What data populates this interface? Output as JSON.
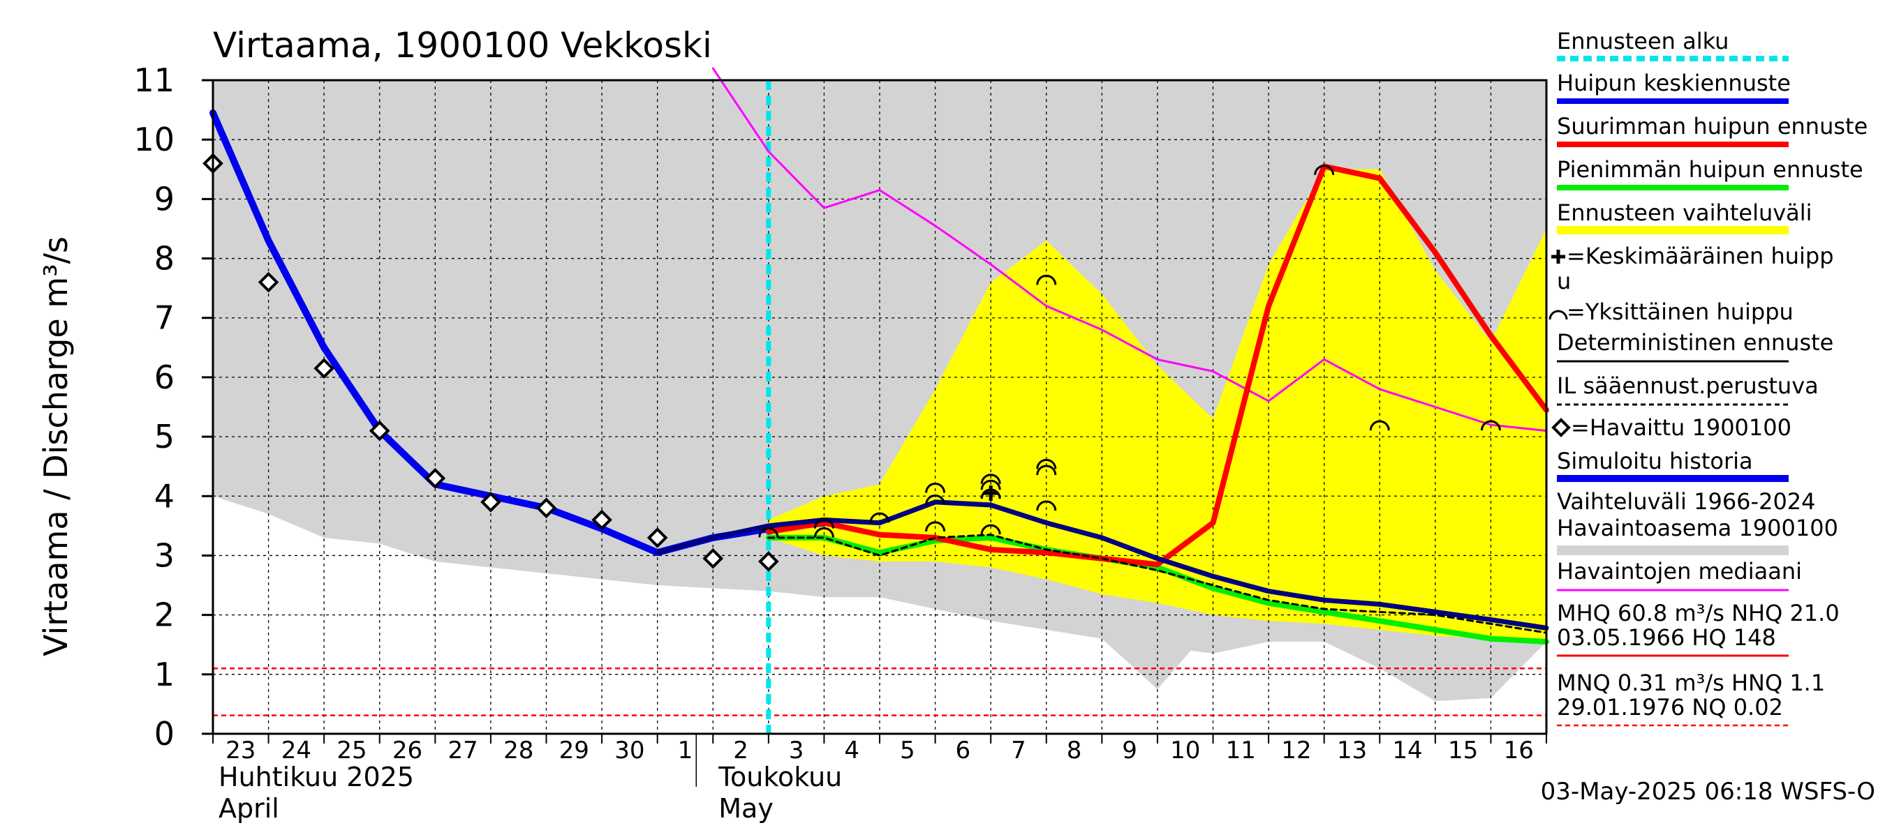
{
  "chart_data": {
    "type": "line",
    "title": "Virtaama, 1900100 Vekkoski",
    "ylabel": "Virtaama / Discharge    m³/s",
    "ylim": [
      0,
      11
    ],
    "yticks": [
      0,
      1,
      2,
      3,
      4,
      5,
      6,
      7,
      8,
      9,
      10,
      11
    ],
    "x_days": [
      "23",
      "24",
      "25",
      "26",
      "27",
      "28",
      "29",
      "30",
      "1",
      "2",
      "3",
      "4",
      "5",
      "6",
      "7",
      "8",
      "9",
      "10",
      "11",
      "12",
      "13",
      "14",
      "15",
      "16"
    ],
    "x_start_index": 0,
    "x_end_index": 24,
    "month_labels": [
      {
        "fi": "Huhtikuu  2025",
        "en": "April",
        "at": 0
      },
      {
        "fi": "Toukokuu",
        "en": "May",
        "at": 9
      }
    ],
    "forecast_start": 10,
    "colors": {
      "grid": "#000000",
      "history_band": "#d3d3d3",
      "forecast_band": "#ffff00",
      "mean_peak": "#0000ee",
      "max_peak": "#ff0000",
      "min_peak": "#00ee00",
      "median": "#ff00ff",
      "simulated": "#0000ee",
      "navy": "#000080",
      "forecast_start_line": "#00e5ee",
      "ref_lines": "#ff0000"
    },
    "history_band": {
      "x": [
        0,
        1,
        2,
        3,
        4,
        5,
        6,
        7,
        8,
        9,
        10,
        11,
        12,
        13,
        14,
        15,
        16,
        17,
        17.6,
        18,
        19,
        20,
        21,
        22,
        23,
        24
      ],
      "upper": [
        11,
        11,
        11,
        11,
        11,
        11,
        11,
        11,
        11,
        11,
        11,
        11,
        11,
        11,
        11,
        11,
        11,
        11,
        11,
        11,
        11,
        11,
        11,
        11,
        11,
        11
      ],
      "lower": [
        4.0,
        3.7,
        3.3,
        3.2,
        2.9,
        2.8,
        2.7,
        2.6,
        2.5,
        2.45,
        2.4,
        2.3,
        2.3,
        2.1,
        1.9,
        1.75,
        1.6,
        0.75,
        1.4,
        1.35,
        1.55,
        1.55,
        1.1,
        0.55,
        0.6,
        1.55
      ]
    },
    "forecast_band": {
      "x": [
        10,
        11,
        12,
        13,
        14,
        15,
        16,
        17,
        18,
        19,
        20,
        21,
        22,
        23,
        24
      ],
      "upper": [
        3.6,
        4.0,
        4.2,
        5.8,
        7.6,
        8.3,
        7.4,
        6.2,
        5.3,
        7.9,
        9.5,
        9.5,
        7.8,
        6.6,
        8.5
      ],
      "lower": [
        3.3,
        3.0,
        2.9,
        2.9,
        2.8,
        2.6,
        2.35,
        2.2,
        2.0,
        1.9,
        1.85,
        1.75,
        1.65,
        1.6,
        1.5
      ]
    },
    "series": [
      {
        "name": "Simuloitu historia",
        "color": "#0000ee",
        "width": 10,
        "x": [
          0,
          1,
          2,
          3,
          4,
          5,
          6,
          7,
          8,
          9,
          10,
          11
        ],
        "y": [
          10.45,
          8.3,
          6.5,
          5.1,
          4.2,
          4.0,
          3.8,
          3.45,
          3.05,
          3.3,
          3.45,
          3.55
        ]
      },
      {
        "name": "Havaintojen mediaani",
        "color": "#ff00ff",
        "width": 3,
        "x": [
          9,
          10,
          11,
          12,
          13,
          14,
          15,
          16,
          17,
          18,
          19,
          20,
          21,
          22,
          23,
          24
        ],
        "y": [
          11.2,
          9.8,
          8.85,
          9.15,
          8.55,
          7.9,
          7.2,
          6.8,
          6.3,
          6.1,
          5.6,
          6.3,
          5.8,
          5.5,
          5.2,
          5.1
        ]
      },
      {
        "name": "Pienimmän huipun ennuste",
        "color": "#00ee00",
        "width": 8,
        "x": [
          10,
          11,
          12,
          13,
          14,
          15,
          16,
          17,
          18,
          19,
          20,
          21,
          22,
          23,
          24
        ],
        "y": [
          3.3,
          3.3,
          3.05,
          3.25,
          3.3,
          3.1,
          2.95,
          2.8,
          2.45,
          2.2,
          2.05,
          1.9,
          1.75,
          1.6,
          1.55
        ]
      },
      {
        "name": "Suurimman huipun ennuste",
        "color": "#ff0000",
        "width": 8,
        "x": [
          10,
          11,
          12,
          13,
          14,
          15,
          16,
          17,
          18,
          19,
          20,
          21,
          22,
          23,
          24
        ],
        "y": [
          3.4,
          3.55,
          3.35,
          3.3,
          3.1,
          3.05,
          2.95,
          2.85,
          3.55,
          7.2,
          9.55,
          9.35,
          8.1,
          6.7,
          5.45
        ]
      },
      {
        "name": "IL sääennust.perustuva",
        "color": "#000000",
        "width": 3,
        "dash": "8,6",
        "x": [
          10,
          11,
          12,
          13,
          14,
          15,
          16,
          17,
          18,
          19,
          20,
          21,
          22,
          23,
          24
        ],
        "y": [
          3.3,
          3.3,
          3.0,
          3.3,
          3.35,
          3.1,
          2.95,
          2.75,
          2.5,
          2.25,
          2.1,
          2.05,
          2.0,
          1.85,
          1.7
        ]
      },
      {
        "name": "Huipun keskiennuste",
        "color": "#000080",
        "width": 7,
        "x": [
          8,
          9,
          10,
          11,
          12,
          13,
          14,
          15,
          16,
          17,
          18,
          19,
          20,
          21,
          22,
          23,
          24
        ],
        "y": [
          3.05,
          3.3,
          3.5,
          3.6,
          3.55,
          3.9,
          3.85,
          3.55,
          3.3,
          2.95,
          2.65,
          2.4,
          2.25,
          2.18,
          2.05,
          1.92,
          1.78
        ]
      }
    ],
    "observed": {
      "name": "Havaittu 1900100",
      "x": [
        0,
        1,
        2,
        3,
        4,
        5,
        6,
        7,
        8,
        9,
        10
      ],
      "y": [
        9.6,
        7.6,
        6.15,
        5.1,
        4.3,
        3.9,
        3.8,
        3.6,
        3.3,
        2.95,
        2.9
      ]
    },
    "peaks": {
      "x": [
        10,
        11,
        11,
        12,
        13,
        13,
        13,
        14,
        14,
        14,
        14,
        14,
        15,
        15,
        15,
        15,
        20,
        21,
        23
      ],
      "y": [
        3.4,
        3.55,
        3.4,
        3.65,
        3.5,
        3.95,
        4.15,
        3.45,
        4.05,
        4.2,
        4.3,
        4.05,
        3.85,
        4.45,
        4.55,
        7.65,
        9.5,
        5.2,
        5.2
      ]
    },
    "mean_peak_markers": {
      "x": [
        14
      ],
      "y": [
        4.05
      ]
    },
    "ref_lines": [
      1.1,
      0.31
    ],
    "legend": {
      "forecast_start": "Ennusteen alku",
      "mean_peak": "Huipun keskiennuste",
      "max_peak": "Suurimman huipun ennuste",
      "min_peak": "Pienimmän huipun ennuste",
      "forecast_band": "Ennusteen vaihteluväli",
      "mean_symbol_line1": "=Keskimääräinen huipp",
      "mean_symbol_line2": "u",
      "single_peak": "=Yksittäinen huippu",
      "deterministic": "Deterministinen ennuste",
      "il_forecast": "IL sääennust.perustuva",
      "observed": "=Havaittu 1900100",
      "simulated": "Simuloitu historia",
      "history_band_line1": "Vaihteluväli 1966-2024",
      "history_band_line2": " Havaintoasema 1900100",
      "median": "Havaintojen mediaani",
      "stats_high_1": "MHQ 60.8 m³/s NHQ 21.0",
      "stats_high_2": "03.05.1966 HQ  148",
      "stats_low_1": "MNQ 0.31 m³/s HNQ  1.1",
      "stats_low_2": "29.01.1976 NQ 0.02"
    },
    "footer": "03-May-2025 06:18 WSFS-O"
  }
}
